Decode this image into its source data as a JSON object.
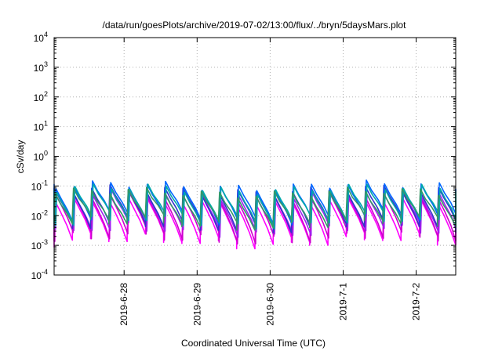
{
  "chart_data": {
    "type": "line",
    "title": "/data/run/goesPlots/archive/2019-07-02/13:00/flux/../bryn/5daysMars.plot",
    "xlabel": "Coordinated Universal Time (UTC)",
    "ylabel": "cSv/day",
    "x_range": [
      "2019-06-27T01:00",
      "2019-07-02T13:00"
    ],
    "x_ticks": [
      {
        "date": "2019-06-28",
        "label": "2019-6-28"
      },
      {
        "date": "2019-06-29",
        "label": "2019-6-29"
      },
      {
        "date": "2019-06-30",
        "label": "2019-6-30"
      },
      {
        "date": "2019-07-01",
        "label": "2019-7-1"
      },
      {
        "date": "2019-07-02",
        "label": "2019-7-2"
      }
    ],
    "y_scale": "log",
    "ylim": [
      0.0001,
      10000
    ],
    "y_ticks": [
      {
        "value": 0.0001,
        "base": "10",
        "exp": "-4"
      },
      {
        "value": 0.001,
        "base": "10",
        "exp": "-3"
      },
      {
        "value": 0.01,
        "base": "10",
        "exp": "-2"
      },
      {
        "value": 0.1,
        "base": "10",
        "exp": "-1"
      },
      {
        "value": 1,
        "base": "10",
        "exp": "0"
      },
      {
        "value": 10,
        "base": "10",
        "exp": "1"
      },
      {
        "value": 100,
        "base": "10",
        "exp": "2"
      },
      {
        "value": 1000,
        "base": "10",
        "exp": "3"
      },
      {
        "value": 10000,
        "base": "10",
        "exp": "4"
      }
    ],
    "grid": true,
    "legend": "none",
    "cycle_hours": 6,
    "series": [
      {
        "color": "#ff00ff",
        "peak": 0.03,
        "trough": 0.0015
      },
      {
        "color": "#cc00cc",
        "peak": 0.04,
        "trough": 0.002
      },
      {
        "color": "#a020f0",
        "peak": 0.05,
        "trough": 0.0035
      },
      {
        "color": "#3333cc",
        "peak": 0.07,
        "trough": 0.005
      },
      {
        "color": "#0066ff",
        "peak": 0.1,
        "trough": 0.008
      },
      {
        "color": "#00aaaa",
        "peak": 0.08,
        "trough": 0.007
      },
      {
        "color": "#339966",
        "peak": 0.06,
        "trough": 0.006
      }
    ]
  }
}
